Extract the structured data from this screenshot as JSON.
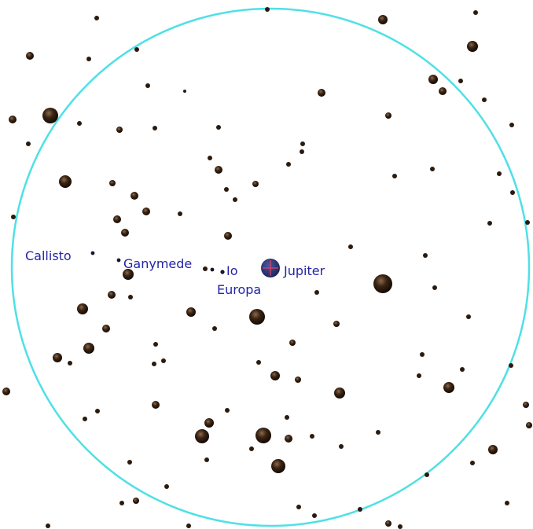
{
  "view": {
    "field_circle_color": "#4fe0e6",
    "star_color": "#2b1a0e",
    "label_color": "#2424a8",
    "planet_color": "#26306e"
  },
  "objects": {
    "planet": {
      "name": "Jupiter",
      "icon": "planet-disc-with-crosshair"
    },
    "moons": [
      {
        "name": "Io"
      },
      {
        "name": "Europa"
      },
      {
        "name": "Ganymede"
      },
      {
        "name": "Callisto"
      }
    ]
  }
}
